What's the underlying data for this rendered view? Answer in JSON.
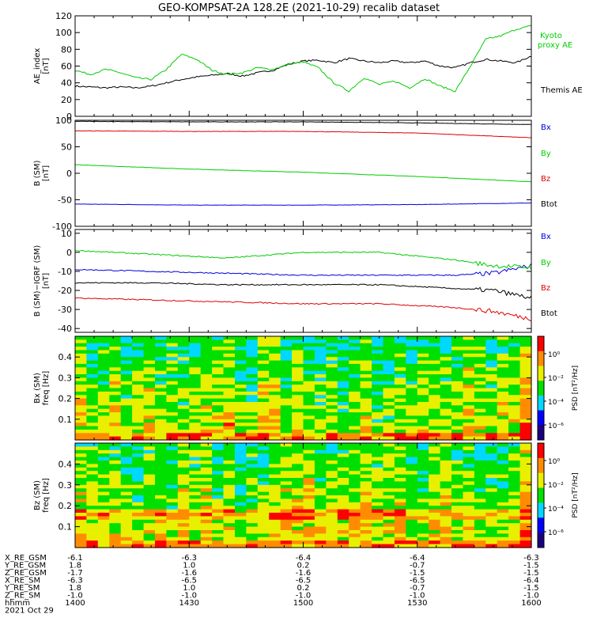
{
  "title": "GEO-KOMPSAT-2A 128.2E (2021-10-29) recalib dataset",
  "chart_data": [
    {
      "type": "line",
      "ylabel_lines": [
        "AE_index",
        "[nT]"
      ],
      "yticks": [
        0,
        20,
        40,
        60,
        80,
        100,
        120
      ],
      "ylim": [
        0,
        120
      ],
      "xlim_minutes_label": [
        "1400",
        "1600"
      ],
      "series": [
        {
          "name": "Themis AE",
          "color": "#000000",
          "x": [
            0,
            4,
            8,
            12,
            16,
            20,
            24,
            28,
            32,
            36,
            40,
            44,
            48,
            52,
            56,
            60,
            64,
            68,
            72,
            76,
            80,
            84,
            88,
            92,
            96,
            100,
            104,
            108,
            112,
            116,
            120
          ],
          "y": [
            36,
            35,
            34,
            35,
            34,
            36,
            40,
            44,
            47,
            49,
            51,
            48,
            52,
            55,
            62,
            66,
            67,
            64,
            69,
            66,
            64,
            66,
            64,
            66,
            60,
            58,
            64,
            68,
            66,
            64,
            72
          ]
        },
        {
          "name": "Kyoto proxy AE",
          "color": "#00cc00",
          "x": [
            0,
            4,
            8,
            12,
            16,
            20,
            24,
            28,
            32,
            36,
            40,
            44,
            48,
            52,
            56,
            60,
            64,
            68,
            72,
            76,
            80,
            84,
            88,
            92,
            96,
            100,
            104,
            108,
            112,
            116,
            120
          ],
          "y": [
            55,
            50,
            56,
            52,
            46,
            44,
            56,
            74,
            68,
            55,
            50,
            52,
            58,
            56,
            62,
            65,
            58,
            40,
            30,
            46,
            38,
            42,
            34,
            45,
            36,
            30,
            60,
            92,
            96,
            104,
            108
          ]
        }
      ]
    },
    {
      "type": "line",
      "ylabel_lines": [
        "B (SM)",
        "[nT]"
      ],
      "yticks": [
        -100,
        -50,
        0,
        50,
        100
      ],
      "ylim": [
        -100,
        100
      ],
      "series": [
        {
          "name": "Bx",
          "color": "#0000dd",
          "x": [
            0,
            30,
            60,
            90,
            120
          ],
          "y": [
            -58,
            -60,
            -60,
            -59,
            -56
          ]
        },
        {
          "name": "By",
          "color": "#00cc00",
          "x": [
            0,
            30,
            60,
            90,
            120
          ],
          "y": [
            16,
            8,
            2,
            -6,
            -16
          ]
        },
        {
          "name": "Bz",
          "color": "#dd0000",
          "x": [
            0,
            30,
            60,
            90,
            120
          ],
          "y": [
            80,
            79,
            79,
            76,
            67
          ]
        },
        {
          "name": "Btot",
          "color": "#000000",
          "x": [
            0,
            30,
            60,
            90,
            120
          ],
          "y": [
            98,
            97,
            97,
            95,
            92
          ]
        }
      ]
    },
    {
      "type": "line",
      "ylabel_lines": [
        "B (SM)−IGRF (SM)",
        "[nT]"
      ],
      "yticks": [
        -40,
        -30,
        -20,
        -10,
        0,
        10
      ],
      "ylim": [
        -42,
        12
      ],
      "series": [
        {
          "name": "Bx",
          "color": "#0000dd",
          "x": [
            0,
            20,
            40,
            60,
            80,
            100,
            110,
            120
          ],
          "y": [
            -9,
            -10,
            -11,
            -12,
            -12,
            -12,
            -11,
            -7
          ]
        },
        {
          "name": "By",
          "color": "#00cc00",
          "x": [
            0,
            20,
            40,
            60,
            80,
            100,
            110,
            120
          ],
          "y": [
            1,
            -1,
            -3,
            0,
            0,
            -4,
            -7,
            -8
          ]
        },
        {
          "name": "Bz",
          "color": "#dd0000",
          "x": [
            0,
            20,
            40,
            60,
            80,
            100,
            110,
            120
          ],
          "y": [
            -24,
            -25,
            -26,
            -27,
            -27,
            -29,
            -31,
            -35
          ]
        },
        {
          "name": "Btot",
          "color": "#000000",
          "x": [
            0,
            20,
            40,
            60,
            80,
            100,
            110,
            120
          ],
          "y": [
            -16,
            -16,
            -17,
            -17,
            -17,
            -19,
            -20,
            -24
          ]
        }
      ]
    },
    {
      "type": "heatmap",
      "ylabel_lines": [
        "Bx (SM)",
        "freq [Hz]"
      ],
      "yticks": [
        0.1,
        0.2,
        0.3,
        0.4
      ],
      "ylim": [
        0,
        0.5
      ],
      "colorbar_label": "PSD [nT²/Hz]",
      "colorbar_ticks": [
        "10⁰",
        "10⁻²",
        "10⁻⁴",
        "10⁻⁶"
      ]
    },
    {
      "type": "heatmap",
      "ylabel_lines": [
        "Bz (SM)",
        "freq [Hz]"
      ],
      "yticks": [
        0.1,
        0.2,
        0.3,
        0.4
      ],
      "ylim": [
        0,
        0.5
      ],
      "colorbar_label": "PSD [nT²/Hz]",
      "colorbar_ticks": [
        "10⁰",
        "10⁻²",
        "10⁻⁴",
        "10⁻⁶"
      ]
    }
  ],
  "ephemeris": {
    "rows": [
      {
        "label": "X_RE_GSM",
        "values": [
          "-6.1",
          "-6.3",
          "-6.4",
          "-6.4",
          "-6.3"
        ]
      },
      {
        "label": "Y_RE_GSM",
        "values": [
          "1.8",
          "1.0",
          "0.2",
          "-0.7",
          "-1.5"
        ]
      },
      {
        "label": "Z_RE_GSM",
        "values": [
          "-1.7",
          "-1.6",
          "-1.6",
          "-1.5",
          "-1.5"
        ]
      },
      {
        "label": "X_RE_SM",
        "values": [
          "-6.3",
          "-6.5",
          "-6.5",
          "-6.5",
          "-6.4"
        ]
      },
      {
        "label": "Y_RE_SM",
        "values": [
          "1.8",
          "1.0",
          "0.2",
          "-0.7",
          "-1.5"
        ]
      },
      {
        "label": "Z_RE_SM",
        "values": [
          "-1.0",
          "-1.0",
          "-1.0",
          "-1.0",
          "-1.0"
        ]
      },
      {
        "label": "hhmm",
        "values": [
          "1400",
          "1430",
          "1500",
          "1530",
          "1600"
        ]
      }
    ],
    "date": "2021 Oct 29"
  }
}
